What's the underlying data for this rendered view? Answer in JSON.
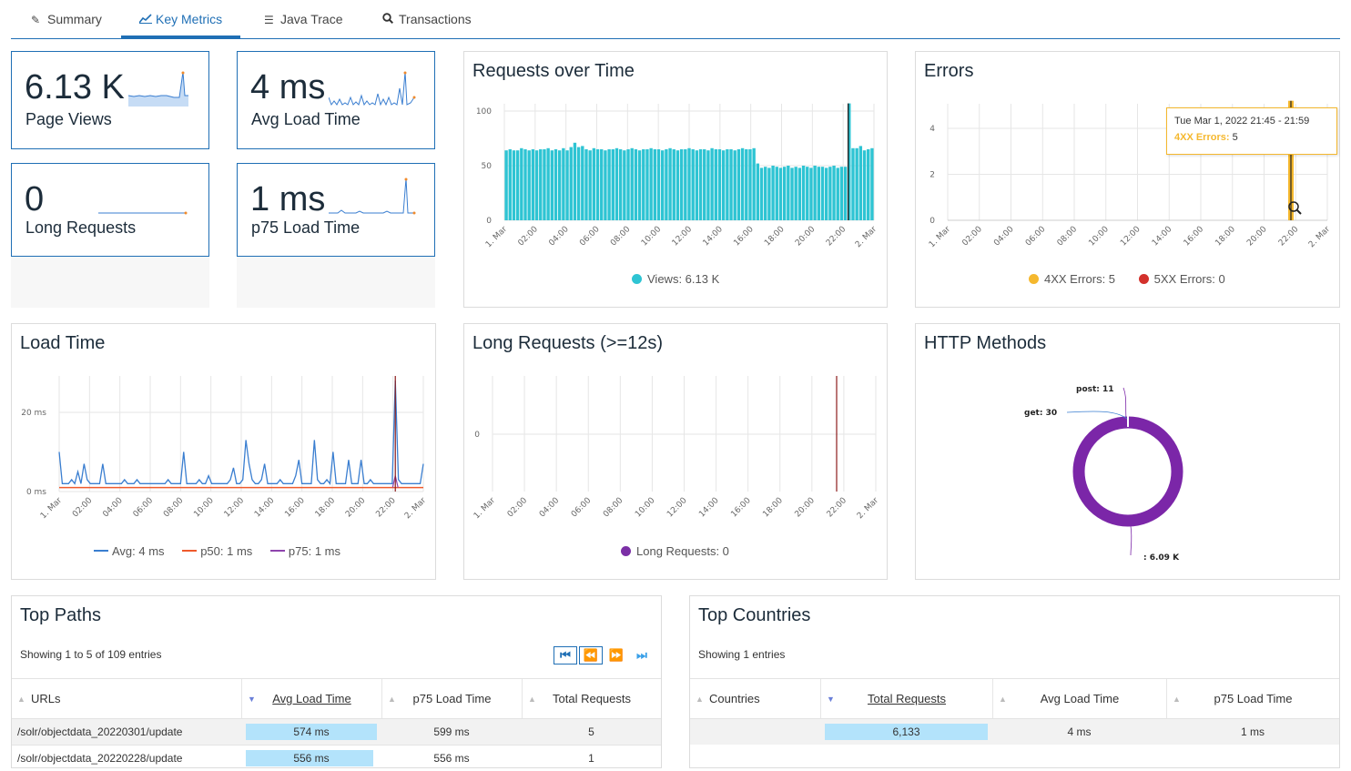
{
  "tabs": [
    {
      "label": "Summary",
      "icon": "wand-icon"
    },
    {
      "label": "Key Metrics",
      "icon": "line-chart-icon"
    },
    {
      "label": "Java Trace",
      "icon": "list-icon"
    },
    {
      "label": "Transactions",
      "icon": "search-icon"
    }
  ],
  "kpis": {
    "page_views": {
      "value": "6.13 K",
      "label": "Page Views"
    },
    "avg_load": {
      "value": "4 ms",
      "label": "Avg Load Time"
    },
    "long_requests": {
      "value": "0",
      "label": "Long Requests"
    },
    "p75_load": {
      "value": "1 ms",
      "label": "p75 Load Time"
    }
  },
  "requests_panel": {
    "title": "Requests over Time",
    "legend": "Views: 6.13 K",
    "color": "#2ec4d3"
  },
  "errors_panel": {
    "title": "Errors",
    "legend_4xx": "4XX Errors: 5",
    "legend_5xx": "5XX Errors: 0",
    "color_4xx": "#f5b82e",
    "color_5xx": "#d3312c",
    "tooltip": {
      "time": "Tue Mar 1, 2022 21:45 - 21:59",
      "key": "4XX Errors:",
      "value": "5"
    }
  },
  "load_panel": {
    "title": "Load Time",
    "legend_avg": "Avg: 4 ms",
    "legend_p50": "p50: 1 ms",
    "legend_p75": "p75: 1 ms",
    "color_avg": "#3a7ed0",
    "color_p50": "#ef5a2c",
    "color_p75": "#8e44ad"
  },
  "long_panel": {
    "title": "Long Requests (>=12s)",
    "legend": "Long Requests: 0",
    "color": "#7b2fa6"
  },
  "http_panel": {
    "title": "HTTP Methods",
    "labels": [
      "post: 11",
      "get: 30",
      ": 6.09 K"
    ],
    "color": "#7b26a8"
  },
  "x_ticks": [
    "1. Mar",
    "02:00",
    "04:00",
    "06:00",
    "08:00",
    "10:00",
    "12:00",
    "14:00",
    "16:00",
    "18:00",
    "20:00",
    "22:00",
    "2. Mar"
  ],
  "chart_data": [
    {
      "type": "bar",
      "title": "Requests over Time",
      "y_ticks": [
        "0",
        "50",
        "100"
      ],
      "ylim": [
        0,
        100
      ],
      "values": [
        64,
        65,
        64,
        64,
        66,
        65,
        64,
        65,
        64,
        65,
        65,
        66,
        64,
        65,
        64,
        66,
        64,
        67,
        71,
        67,
        68,
        65,
        64,
        66,
        65,
        65,
        64,
        65,
        65,
        66,
        65,
        64,
        65,
        66,
        65,
        64,
        65,
        65,
        66,
        65,
        65,
        64,
        65,
        66,
        65,
        64,
        65,
        65,
        66,
        65,
        64,
        65,
        65,
        64,
        66,
        65,
        65,
        64,
        65,
        65,
        64,
        65,
        66,
        65,
        65,
        66,
        52,
        48,
        49,
        48,
        50,
        49,
        48,
        49,
        50,
        48,
        49,
        48,
        50,
        49,
        48,
        50,
        49,
        49,
        48,
        49,
        50,
        48,
        49,
        49,
        107,
        66,
        66,
        68,
        64,
        65,
        66
      ]
    },
    {
      "type": "bar",
      "title": "Errors",
      "y_ticks": [
        "0",
        "2",
        "4"
      ],
      "ylim": [
        0,
        5
      ],
      "series": [
        {
          "name": "4XX Errors",
          "spike_at": "21:45",
          "value": 5
        },
        {
          "name": "5XX Errors",
          "value": 0
        }
      ]
    },
    {
      "type": "line",
      "title": "Load Time",
      "y_ticks": [
        "0 ms",
        "20 ms"
      ],
      "ylim": [
        0,
        28
      ],
      "avg": [
        10,
        2,
        2,
        2,
        3,
        2,
        5,
        2,
        7,
        3,
        2,
        2,
        2,
        2,
        7,
        2,
        2,
        2,
        2,
        2,
        2,
        3,
        2,
        2,
        2,
        3,
        2,
        2,
        2,
        2,
        2,
        2,
        2,
        2,
        2,
        3,
        2,
        2,
        2,
        2,
        10,
        2,
        2,
        2,
        2,
        3,
        2,
        2,
        4,
        2,
        2,
        2,
        2,
        2,
        2,
        3,
        6,
        2,
        2,
        3,
        13,
        7,
        3,
        2,
        2,
        3,
        7,
        2,
        2,
        2,
        2,
        3,
        2,
        2,
        2,
        2,
        4,
        8,
        2,
        2,
        2,
        2,
        13,
        3,
        2,
        2,
        3,
        2,
        10,
        2,
        2,
        2,
        2,
        8,
        2,
        2,
        2,
        8,
        2,
        2,
        3,
        2,
        2,
        2,
        2,
        2,
        2,
        2,
        28,
        3,
        2,
        2,
        2,
        2,
        2,
        2,
        2,
        7
      ],
      "p50": 1,
      "p75_spike": 4
    },
    {
      "type": "line",
      "title": "Long Requests (>=12s)",
      "y_ticks": [
        "0"
      ],
      "values": "all zero"
    },
    {
      "type": "pie",
      "title": "HTTP Methods",
      "slices": [
        {
          "label": "post",
          "value": 11
        },
        {
          "label": "get",
          "value": 30
        },
        {
          "label": "",
          "value": 6090
        }
      ]
    }
  ],
  "top_paths": {
    "title": "Top Paths",
    "showing": "Showing 1 to 5 of 109 entries",
    "headers": [
      "URLs",
      "Avg Load Time",
      "p75 Load Time",
      "Total Requests"
    ],
    "rows": [
      {
        "url": "/solr/objectdata_20220301/update",
        "avg": "574 ms",
        "p75": "599 ms",
        "total": "5",
        "avg_fraction": 1.0
      },
      {
        "url": "/solr/objectdata_20220228/update",
        "avg": "556 ms",
        "p75": "556 ms",
        "total": "1",
        "avg_fraction": 0.97
      }
    ]
  },
  "top_countries": {
    "title": "Top Countries",
    "showing": "Showing 1 entries",
    "headers": [
      "Countries",
      "Total Requests",
      "Avg Load Time",
      "p75 Load Time"
    ],
    "rows": [
      {
        "country": "",
        "total": "6,133",
        "avg": "4 ms",
        "p75": "1 ms",
        "total_fraction": 1.0
      }
    ]
  }
}
